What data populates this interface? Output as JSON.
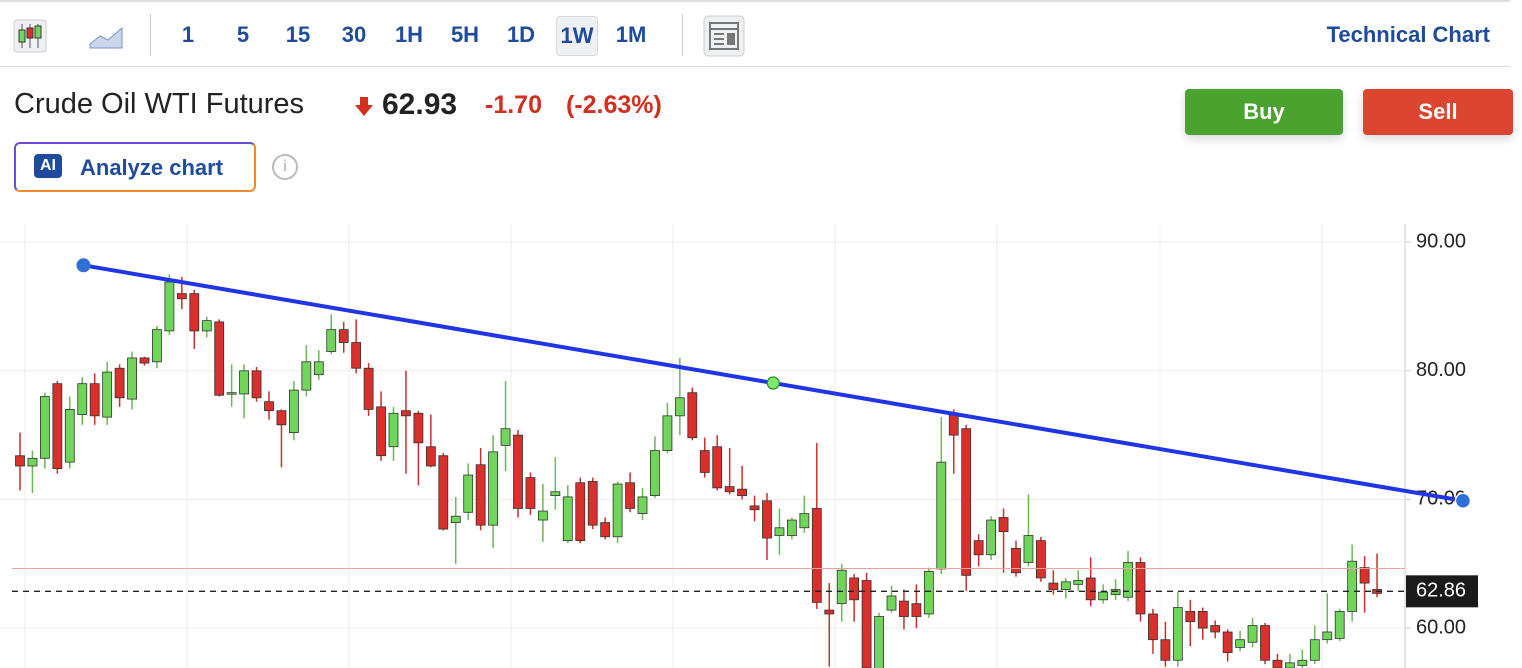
{
  "toolbar": {
    "intervals": [
      "1",
      "5",
      "15",
      "30",
      "1H",
      "5H",
      "1D",
      "1W",
      "1M"
    ],
    "active_index": 7,
    "link": "Technical Chart"
  },
  "instrument": {
    "name": "Crude Oil WTI Futures",
    "price": "62.93",
    "change": "-1.70",
    "change_pct": "(-2.63%)"
  },
  "actions": {
    "buy": "Buy",
    "sell": "Sell",
    "ai_badge": "AI",
    "analyze": "Analyze chart"
  },
  "chart_data": {
    "type": "candlestick",
    "open": [
      73.4,
      72.6,
      73.2,
      79.0,
      72.9,
      76.6,
      79.0,
      76.4,
      80.2,
      77.8,
      81.0,
      80.7,
      83.1,
      86.0,
      86.0,
      83.1,
      83.8,
      78.2,
      78.2,
      80.0,
      77.6,
      76.9,
      75.2,
      78.5,
      79.7,
      81.5,
      83.2,
      82.2,
      80.2,
      77.2,
      74.1,
      76.9,
      76.7,
      74.1,
      73.4,
      68.2,
      69.0,
      72.7,
      68.0,
      74.2,
      75.0,
      71.7,
      68.4,
      70.3,
      66.8,
      71.3,
      71.4,
      68.2,
      67.1,
      71.3,
      68.9,
      70.3,
      73.8,
      76.5,
      78.3,
      73.8,
      74.1,
      71.0,
      70.8,
      69.5,
      69.9,
      67.2,
      67.2,
      67.8,
      69.3,
      61.4,
      61.9,
      63.9,
      63.7,
      56.5,
      61.4,
      62.1,
      61.9,
      61.1,
      64.6,
      76.6,
      75.5,
      66.8,
      65.7,
      68.6,
      66.2,
      65.1,
      66.8,
      63.5,
      63.0,
      63.4,
      63.9,
      62.2,
      62.6,
      62.4,
      65.1,
      61.1,
      59.1,
      57.5,
      61.3,
      61.3,
      60.2,
      59.7,
      58.5,
      58.9,
      60.2,
      57.5,
      56.9,
      57.1,
      57.5,
      59.1,
      59.2,
      61.3,
      64.7,
      63.0
    ],
    "high": [
      75.2,
      73.8,
      78.3,
      79.2,
      78.0,
      79.5,
      79.8,
      80.7,
      80.5,
      81.5,
      81.1,
      83.5,
      87.5,
      87.3,
      86.3,
      84.2,
      84.0,
      80.5,
      80.5,
      80.3,
      78.4,
      77.0,
      79.2,
      82.0,
      81.6,
      84.4,
      83.8,
      84.0,
      80.6,
      78.4,
      77.2,
      80.0,
      76.9,
      76.6,
      73.6,
      70.2,
      72.8,
      74.0,
      75.0,
      79.2,
      75.4,
      72.1,
      71.2,
      73.3,
      71.1,
      71.7,
      71.7,
      68.6,
      71.4,
      72.1,
      70.9,
      74.9,
      77.5,
      81.0,
      78.7,
      74.8,
      75.0,
      74.0,
      72.6,
      70.3,
      70.5,
      69.3,
      68.6,
      70.3,
      74.4,
      63.5,
      65.0,
      64.2,
      64.3,
      61.2,
      63.3,
      63.0,
      63.4,
      64.7,
      76.4,
      77.0,
      75.8,
      67.3,
      68.7,
      69.3,
      66.8,
      70.4,
      67.1,
      64.5,
      63.9,
      64.5,
      65.5,
      63.4,
      63.8,
      66.0,
      65.5,
      61.5,
      60.5,
      62.8,
      62.2,
      61.6,
      60.6,
      59.9,
      59.8,
      60.8,
      60.4,
      58.0,
      58.0,
      58.3,
      60.2,
      62.7,
      61.5,
      66.5,
      65.6,
      65.8
    ],
    "low": [
      70.7,
      70.5,
      72.4,
      72.0,
      72.4,
      75.8,
      75.8,
      75.8,
      77.2,
      77.0,
      80.4,
      80.2,
      82.8,
      84.8,
      81.7,
      82.6,
      78.0,
      77.2,
      76.3,
      77.6,
      76.2,
      72.5,
      74.6,
      78.0,
      79.3,
      81.3,
      81.4,
      79.8,
      76.5,
      73.0,
      73.0,
      72.0,
      71.1,
      72.5,
      67.6,
      65.0,
      68.4,
      67.6,
      66.2,
      72.2,
      68.6,
      68.8,
      66.7,
      69.2,
      66.6,
      66.6,
      67.7,
      66.9,
      66.6,
      69.0,
      68.4,
      70.1,
      73.6,
      75.0,
      74.6,
      71.7,
      70.7,
      70.4,
      70.0,
      68.3,
      65.3,
      65.7,
      66.9,
      67.4,
      61.5,
      57.0,
      60.5,
      60.5,
      55.5,
      55.0,
      61.2,
      59.9,
      60.0,
      60.8,
      64.2,
      72.0,
      62.9,
      64.8,
      65.3,
      64.3,
      64.0,
      64.8,
      63.6,
      62.6,
      62.3,
      62.9,
      61.7,
      61.9,
      62.2,
      62.1,
      60.5,
      58.0,
      57.0,
      57.0,
      58.6,
      59.1,
      59.2,
      57.4,
      58.2,
      58.5,
      57.2,
      56.0,
      56.5,
      56.8,
      57.2,
      58.8,
      59.0,
      60.5,
      61.2,
      62.4
    ],
    "close": [
      72.6,
      73.2,
      78.0,
      72.4,
      77.0,
      79.0,
      76.5,
      79.9,
      77.9,
      81.0,
      80.6,
      83.2,
      86.9,
      85.6,
      83.1,
      83.9,
      78.1,
      78.3,
      80.0,
      77.9,
      76.9,
      75.8,
      78.5,
      80.7,
      80.7,
      83.2,
      82.2,
      80.2,
      77.0,
      73.4,
      76.7,
      76.5,
      74.4,
      72.6,
      67.7,
      68.7,
      71.9,
      68.0,
      73.7,
      75.5,
      69.3,
      69.3,
      69.1,
      70.6,
      70.2,
      66.8,
      68.0,
      67.1,
      71.2,
      69.3,
      70.2,
      73.8,
      76.5,
      77.9,
      74.8,
      72.1,
      70.9,
      70.6,
      70.3,
      69.2,
      67.0,
      67.8,
      68.4,
      68.9,
      62.0,
      61.1,
      64.5,
      62.2,
      56.9,
      60.9,
      62.5,
      60.9,
      60.9,
      64.4,
      72.9,
      75.0,
      64.1,
      65.7,
      68.4,
      67.5,
      64.3,
      67.2,
      63.9,
      63.0,
      63.6,
      63.7,
      62.2,
      62.8,
      63.0,
      65.1,
      61.1,
      59.1,
      57.5,
      61.6,
      60.5,
      60.0,
      59.7,
      58.1,
      59.1,
      60.2,
      57.5,
      56.9,
      57.3,
      57.5,
      59.1,
      59.7,
      61.3,
      65.2,
      63.5,
      62.7
    ],
    "up_color": "#6fd65a",
    "down_color": "#d9302c",
    "trendline": {
      "x": [
        5.1,
        115.9
      ],
      "values": [
        88.2,
        69.9
      ],
      "color": "#1f35e6"
    },
    "prev_close": 64.63,
    "last_price": {
      "value": 62.86,
      "label": "62.86"
    },
    "ylim": [
      56.9,
      91.1
    ],
    "yticks": [
      {
        "value": 60,
        "label": "60.00"
      },
      {
        "value": 70,
        "label": "70.00"
      },
      {
        "value": 80,
        "label": "80.00"
      },
      {
        "value": 90,
        "label": "90.00"
      }
    ],
    "grid": true
  }
}
